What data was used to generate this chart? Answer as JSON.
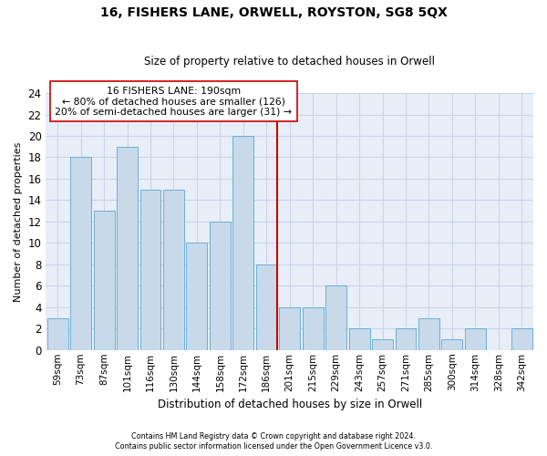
{
  "title": "16, FISHERS LANE, ORWELL, ROYSTON, SG8 5QX",
  "subtitle": "Size of property relative to detached houses in Orwell",
  "xlabel": "Distribution of detached houses by size in Orwell",
  "ylabel": "Number of detached properties",
  "footer1": "Contains HM Land Registry data © Crown copyright and database right 2024.",
  "footer2": "Contains public sector information licensed under the Open Government Licence v3.0.",
  "categories": [
    "59sqm",
    "73sqm",
    "87sqm",
    "101sqm",
    "116sqm",
    "130sqm",
    "144sqm",
    "158sqm",
    "172sqm",
    "186sqm",
    "201sqm",
    "215sqm",
    "229sqm",
    "243sqm",
    "257sqm",
    "271sqm",
    "285sqm",
    "300sqm",
    "314sqm",
    "328sqm",
    "342sqm"
  ],
  "values": [
    3,
    18,
    13,
    19,
    15,
    15,
    10,
    12,
    20,
    8,
    4,
    4,
    6,
    2,
    1,
    2,
    3,
    1,
    2,
    0,
    2
  ],
  "bar_color": "#c8daea",
  "bar_edge_color": "#6aaed6",
  "property_line_index": 9,
  "property_line_color": "#cc0000",
  "annotation_line1": "16 FISHERS LANE: 190sqm",
  "annotation_line2": "← 80% of detached houses are smaller (126)",
  "annotation_line3": "20% of semi-detached houses are larger (31) →",
  "annotation_box_color": "#cc0000",
  "grid_color": "#c8d4e8",
  "ylim": [
    0,
    24
  ],
  "yticks": [
    0,
    2,
    4,
    6,
    8,
    10,
    12,
    14,
    16,
    18,
    20,
    22,
    24
  ],
  "background_color": "#e8eef8"
}
